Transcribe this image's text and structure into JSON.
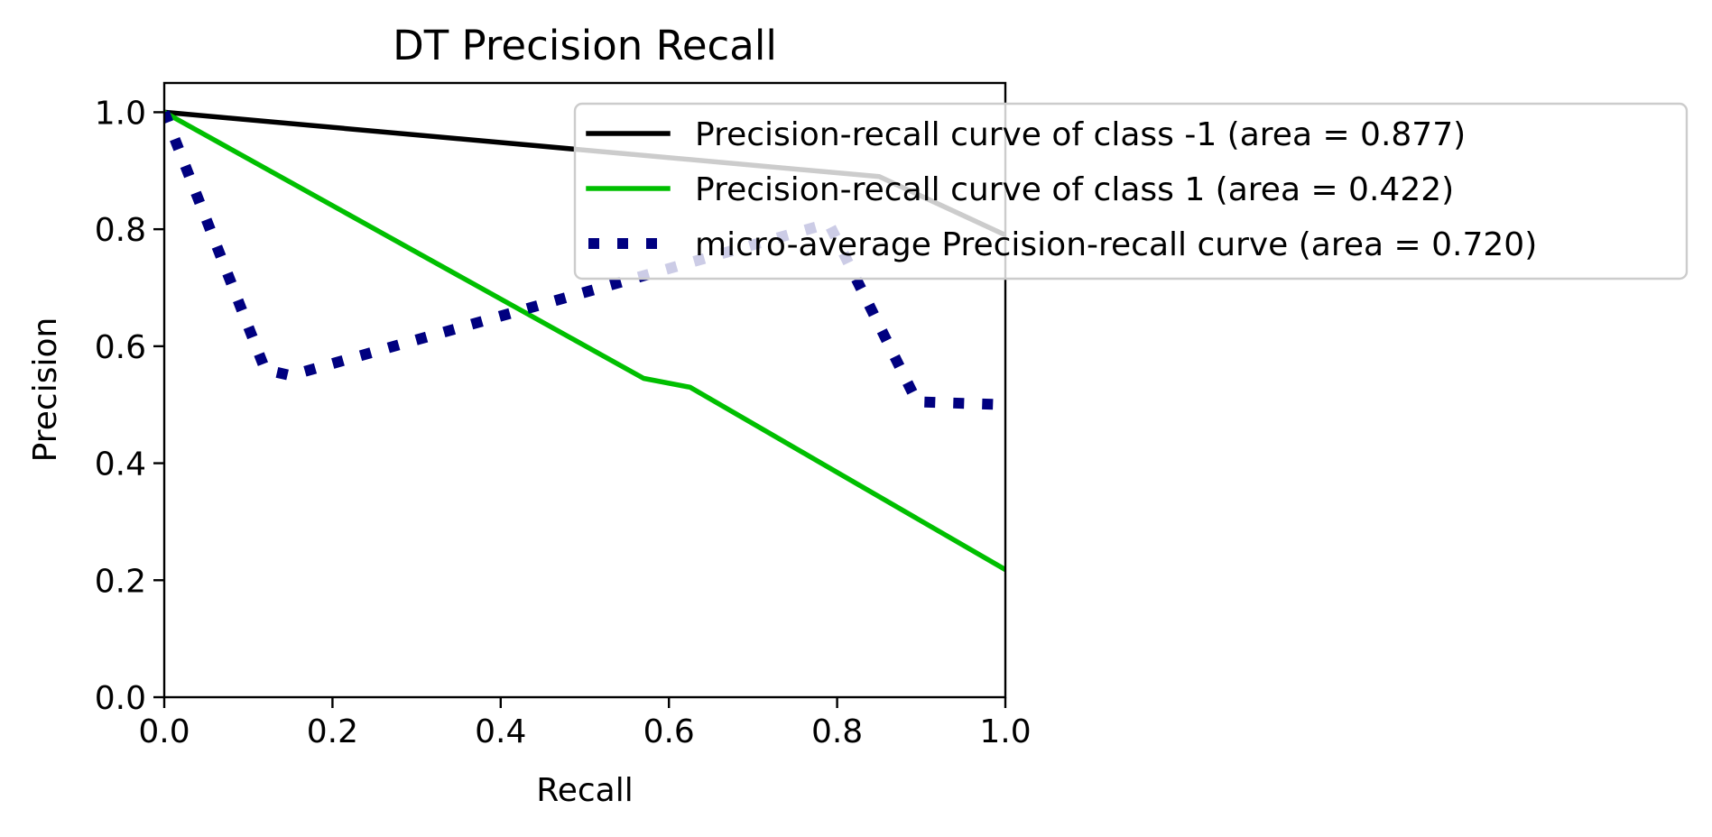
{
  "chart_data": {
    "type": "line",
    "title": "DT Precision Recall",
    "xlabel": "Recall",
    "ylabel": "Precision",
    "xlim": [
      0.0,
      1.0
    ],
    "ylim": [
      0.0,
      1.05
    ],
    "xticks": [
      "0.0",
      "0.2",
      "0.4",
      "0.6",
      "0.8",
      "1.0"
    ],
    "yticks": [
      "0.0",
      "0.2",
      "0.4",
      "0.6",
      "0.8",
      "1.0"
    ],
    "grid": false,
    "legend_position": "upper right",
    "series": [
      {
        "name": "Precision-recall curve of class -1 (area = 0.877)",
        "color": "#000000",
        "style": "solid",
        "x": [
          0.0,
          0.85,
          1.0
        ],
        "y": [
          1.0,
          0.89,
          0.79
        ]
      },
      {
        "name": "Precision-recall curve of class 1 (area = 0.422)",
        "color": "#00bf00",
        "style": "solid",
        "x": [
          0.0,
          0.57,
          0.625,
          1.0
        ],
        "y": [
          1.0,
          0.545,
          0.53,
          0.218
        ]
      },
      {
        "name": "micro-average Precision-recall curve (area = 0.720)",
        "color": "#000080",
        "style": "dotted",
        "x": [
          0.0,
          0.12,
          0.15,
          0.79,
          0.895,
          1.0
        ],
        "y": [
          1.0,
          0.56,
          0.55,
          0.81,
          0.505,
          0.5
        ]
      }
    ]
  }
}
